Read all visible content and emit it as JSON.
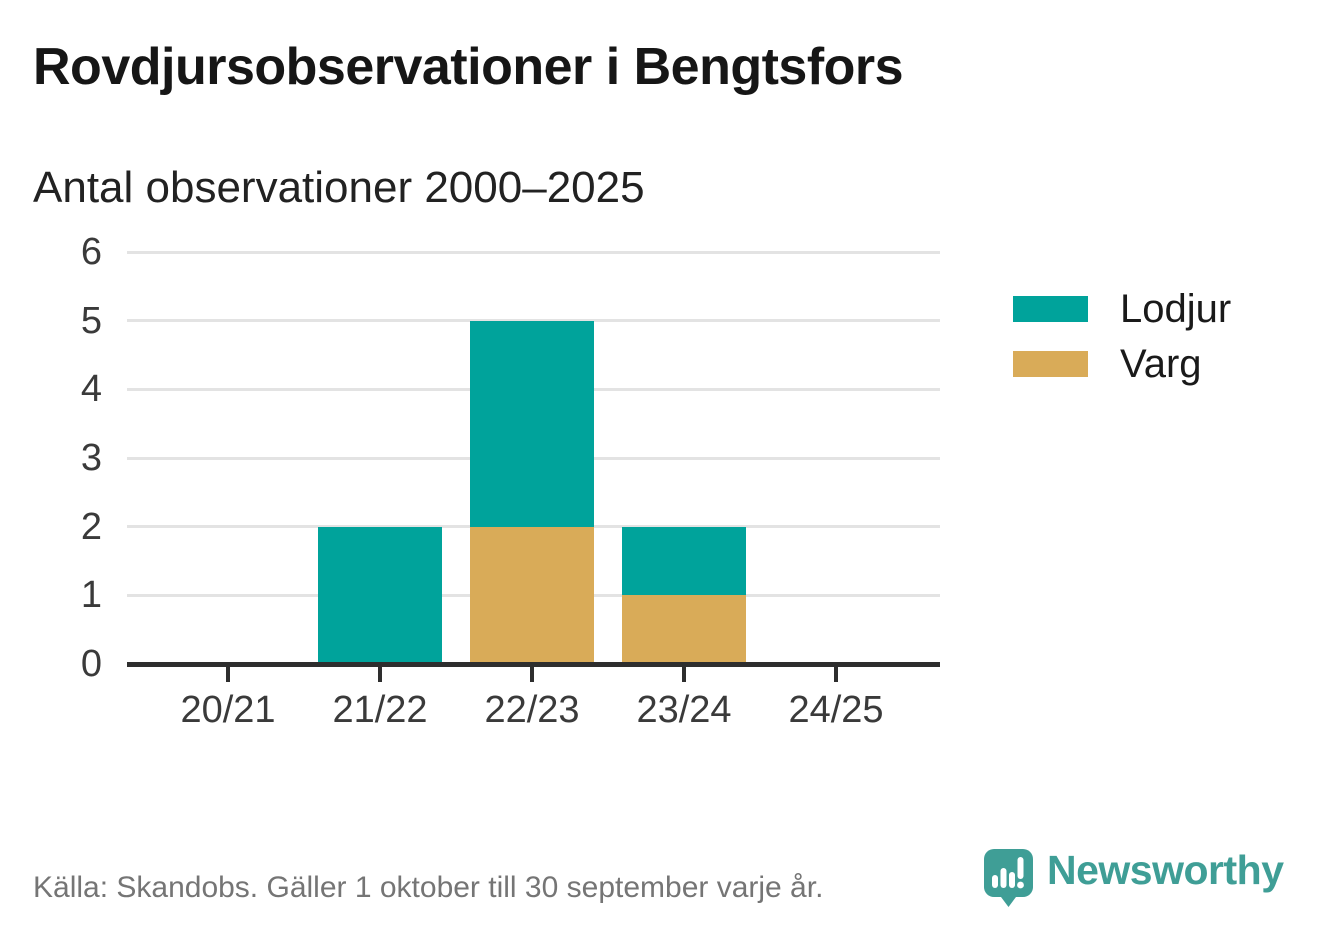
{
  "page": {
    "title": "Rovdjursobservationer i Bengtsfors",
    "subtitle": "Antal observationer 2000–2025",
    "source": "Källa: Skandobs. Gäller 1 oktober till 30 september varje år.",
    "brand": "Newsworthy"
  },
  "colors": {
    "lodjur_teal": "#00a39b",
    "varg_gold": "#d9ab58",
    "axis_dark": "#2e2e2e",
    "gridline_gray": "#e3e3e3",
    "text_dark": "#161616",
    "text_muted": "#757575",
    "brand_teal": "#3f9e96"
  },
  "chart_data": {
    "type": "bar",
    "stacked": true,
    "title": "Rovdjursobservationer i Bengtsfors",
    "subtitle": "Antal observationer 2000–2025",
    "xlabel": "",
    "ylabel": "",
    "categories": [
      "20/21",
      "21/22",
      "22/23",
      "23/24",
      "24/25"
    ],
    "series": [
      {
        "name": "Lodjur",
        "color": "#00a39b",
        "values": [
          0,
          2,
          3,
          1,
          0
        ]
      },
      {
        "name": "Varg",
        "color": "#d9ab58",
        "values": [
          0,
          0,
          2,
          1,
          0
        ]
      }
    ],
    "totals": [
      0,
      2,
      5,
      2,
      0
    ],
    "stack_order_bottom_to_top": [
      "Varg",
      "Lodjur"
    ],
    "ylim": [
      0,
      6
    ],
    "yticks": [
      0,
      1,
      2,
      3,
      4,
      5,
      6
    ],
    "grid": true,
    "legend_position": "right",
    "source": "Källa: Skandobs. Gäller 1 oktober till 30 september varje år."
  }
}
